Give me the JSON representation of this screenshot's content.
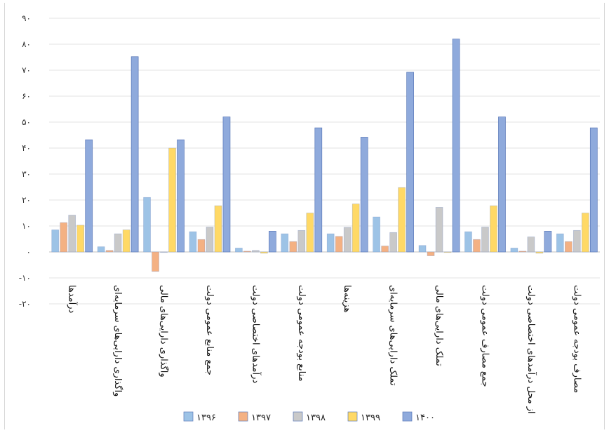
{
  "chart_data": {
    "type": "bar",
    "title": "",
    "xlabel": "",
    "ylabel": "",
    "ylim": [
      -20,
      90
    ],
    "y_ticks": [
      -20,
      -10,
      0,
      10,
      20,
      30,
      40,
      50,
      60,
      70,
      80,
      90
    ],
    "y_tick_labels": [
      "-۲۰",
      "-۱۰",
      "۰",
      "۱۰",
      "۲۰",
      "۳۰",
      "۴۰",
      "۵۰",
      "۶۰",
      "۷۰",
      "۸۰",
      "۹۰"
    ],
    "grid": true,
    "legend_position": "bottom",
    "categories": [
      "درآمدها",
      "واگذاری دارایی‌های سرمایه‌ای",
      "واگذاری دارایی‌های مالی",
      "جمع منابع عمومی دولت",
      "درآمدهای اختصاصی دولت",
      "منابع بودجه عمومی دولت",
      "هزینه‌ها",
      "تملک دارایی‌های سرمایه‌ای",
      "تملک دارایی‌های مالی",
      "جمع مصارف عمومی دولت",
      "از محل درآمدهای اختصاصی دولت",
      "مصارف بودجه عمومی دولت"
    ],
    "series": [
      {
        "name": "۱۳۹۶",
        "color": "#9dc3e6",
        "values": [
          8.5,
          2,
          21,
          7.8,
          1.5,
          7,
          7,
          13.5,
          2.5,
          7.8,
          1.5,
          7
        ]
      },
      {
        "name": "۱۳۹۷",
        "color": "#f4b183",
        "values": [
          11.3,
          0.6,
          -7.5,
          4.8,
          0.3,
          4,
          6,
          2.3,
          -1.5,
          4.8,
          0.3,
          4
        ]
      },
      {
        "name": "۱۳۹۸",
        "color": "#c9c9c9",
        "values": [
          14.2,
          7,
          0,
          9.6,
          0.6,
          8.3,
          9.5,
          7.5,
          17.2,
          9.6,
          5.8,
          8.3
        ]
      },
      {
        "name": "۱۳۹۹",
        "color": "#ffd966",
        "values": [
          10.3,
          8.5,
          40,
          17.8,
          -0.5,
          15,
          18.5,
          24.8,
          0,
          17.8,
          -0.5,
          15
        ]
      },
      {
        "name": "۱۴۰۰",
        "color": "#8faadc",
        "values": [
          43.2,
          75.2,
          43.2,
          52,
          8,
          47.8,
          44.2,
          69.2,
          82,
          52,
          8,
          47.8
        ]
      }
    ]
  }
}
